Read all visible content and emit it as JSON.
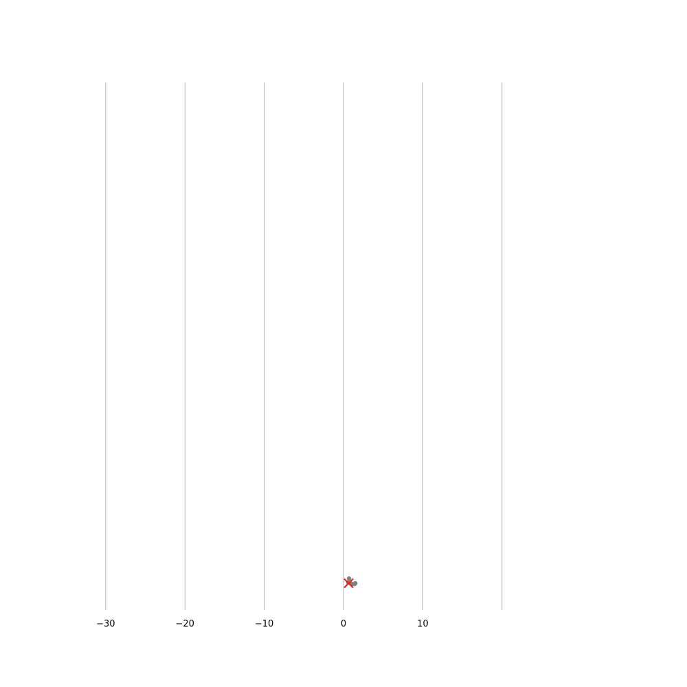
{
  "chart_data": {
    "type": "scatter",
    "title": "",
    "xlabel": "",
    "ylabel": "",
    "xlim": [
      -32.5,
      32.5
    ],
    "grid": true,
    "grid_axis": "x",
    "x_ticks": [
      -30,
      -20,
      -10,
      0,
      10,
      20
    ],
    "x_tick_labels": [
      "−30",
      "−20",
      "−10",
      "0",
      "10",
      ""
    ],
    "series": [
      {
        "marker": "dot",
        "color": "#808080",
        "points": [
          {
            "x": 0.7,
            "y": 0.3
          },
          {
            "x": 0.9,
            "y": 0.0
          },
          {
            "x": 1.1,
            "y": -0.05
          },
          {
            "x": 1.4,
            "y": -0.05
          },
          {
            "x": 1.5,
            "y": 0.0
          },
          {
            "x": 0.6,
            "y": 0.05
          }
        ]
      },
      {
        "marker": "x",
        "color": "#e8211a",
        "points": [
          {
            "x": 0.65,
            "y": 0.0
          }
        ]
      }
    ]
  }
}
